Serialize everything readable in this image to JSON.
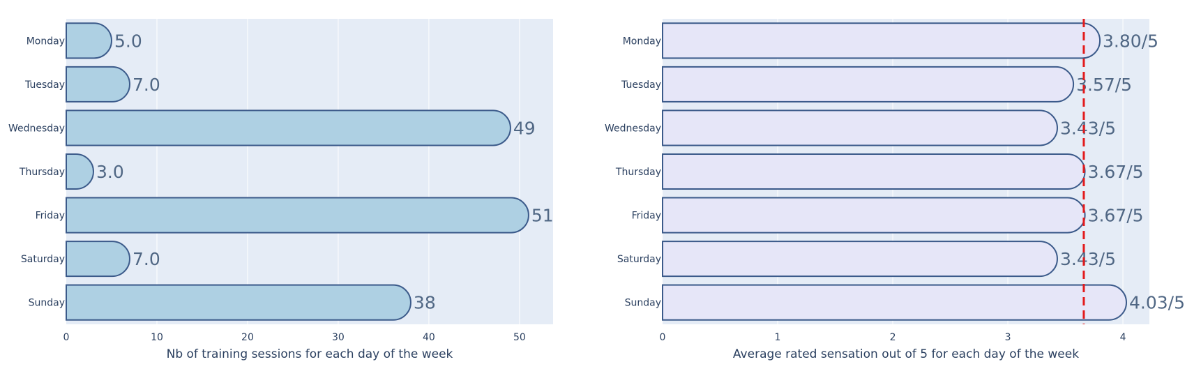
{
  "chart_data": [
    {
      "type": "bar",
      "orientation": "horizontal",
      "categories": [
        "Monday",
        "Tuesday",
        "Wednesday",
        "Thursday",
        "Friday",
        "Saturday",
        "Sunday"
      ],
      "values": [
        5,
        7,
        49,
        3,
        51,
        7,
        38
      ],
      "data_labels": [
        "5.0",
        "7.0",
        "49",
        "3.0",
        "51",
        "7.0",
        "38"
      ],
      "xlabel": "Nb of training sessions for each day of the week",
      "ylabel": "",
      "xlim": [
        0,
        53.7
      ],
      "xticks": [
        "0",
        "10",
        "20",
        "30",
        "40",
        "50"
      ],
      "grid": true,
      "colors": {
        "plot_bg": "#e5ecf6",
        "bar_fill": "#aed0e3",
        "bar_line": "#3b5a8a",
        "grid": "#ffffff"
      }
    },
    {
      "type": "bar",
      "orientation": "horizontal",
      "categories": [
        "Monday",
        "Tuesday",
        "Wednesday",
        "Thursday",
        "Friday",
        "Saturday",
        "Sunday"
      ],
      "values": [
        3.8,
        3.57,
        3.43,
        3.67,
        3.67,
        3.43,
        4.03
      ],
      "data_labels": [
        "3.80/5",
        "3.57/5",
        "3.43/5",
        "3.67/5",
        "3.67/5",
        "3.43/5",
        "4.03/5"
      ],
      "xlabel": "Average rated sensation out of 5 for each day of the week",
      "ylabel": "",
      "xlim": [
        0,
        4.23
      ],
      "xticks": [
        "0",
        "1",
        "2",
        "3",
        "4"
      ],
      "reference_line": 3.66,
      "grid": true,
      "colors": {
        "plot_bg": "#e5ecf6",
        "bar_fill": "#e6e6f8",
        "bar_line": "#3b5a8a",
        "grid": "#ffffff",
        "reference_line": "#e31a1c"
      }
    }
  ]
}
